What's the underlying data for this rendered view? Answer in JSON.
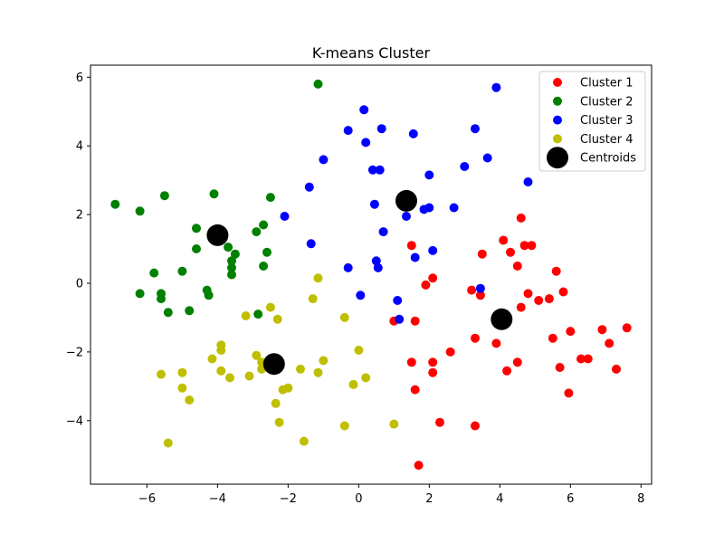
{
  "chart_data": {
    "type": "scatter",
    "title": "K-means Cluster",
    "xlabel": "",
    "ylabel": "",
    "xlim": [
      -7.6,
      8.3
    ],
    "ylim": [
      -5.85,
      6.35
    ],
    "xticks": [
      -6,
      -4,
      -2,
      0,
      2,
      4,
      6,
      8
    ],
    "yticks": [
      -4,
      -2,
      0,
      2,
      4,
      6
    ],
    "xtick_labels": [
      "−6",
      "−4",
      "−2",
      "0",
      "2",
      "4",
      "6",
      "8"
    ],
    "ytick_labels": [
      "−4",
      "−2",
      "0",
      "2",
      "4",
      "6"
    ],
    "grid": false,
    "legend_position": "top-right",
    "series": [
      {
        "name": "Cluster 1",
        "color": "#ff0000",
        "points": [
          [
            1.5,
            1.1
          ],
          [
            1.6,
            -1.1
          ],
          [
            1.5,
            -2.3
          ],
          [
            1.6,
            -3.1
          ],
          [
            1.7,
            -5.3
          ],
          [
            1.0,
            -1.1
          ],
          [
            1.9,
            -0.05
          ],
          [
            2.1,
            0.15
          ],
          [
            2.1,
            -2.3
          ],
          [
            2.1,
            -2.6
          ],
          [
            2.3,
            -4.05
          ],
          [
            2.6,
            -2.0
          ],
          [
            3.2,
            -0.2
          ],
          [
            3.3,
            -1.6
          ],
          [
            3.3,
            -4.15
          ],
          [
            3.45,
            -0.35
          ],
          [
            3.5,
            0.85
          ],
          [
            3.9,
            -1.75
          ],
          [
            4.1,
            1.25
          ],
          [
            4.2,
            -2.55
          ],
          [
            4.3,
            0.9
          ],
          [
            4.5,
            0.5
          ],
          [
            4.5,
            -2.3
          ],
          [
            4.6,
            1.9
          ],
          [
            4.6,
            -0.7
          ],
          [
            4.7,
            1.1
          ],
          [
            4.8,
            -0.3
          ],
          [
            4.9,
            1.1
          ],
          [
            5.1,
            -0.5
          ],
          [
            5.4,
            -0.45
          ],
          [
            5.5,
            -1.6
          ],
          [
            5.6,
            0.35
          ],
          [
            5.7,
            -2.45
          ],
          [
            5.8,
            -0.25
          ],
          [
            5.95,
            -3.2
          ],
          [
            6.0,
            -1.4
          ],
          [
            6.3,
            -2.2
          ],
          [
            6.5,
            -2.2
          ],
          [
            6.9,
            -1.35
          ],
          [
            7.1,
            -1.75
          ],
          [
            7.3,
            -2.5
          ],
          [
            7.6,
            -1.3
          ]
        ]
      },
      {
        "name": "Cluster 2",
        "color": "#008000",
        "points": [
          [
            -6.9,
            2.3
          ],
          [
            -6.2,
            2.1
          ],
          [
            -6.2,
            -0.3
          ],
          [
            -5.8,
            0.3
          ],
          [
            -5.6,
            -0.3
          ],
          [
            -5.6,
            -0.45
          ],
          [
            -5.5,
            2.55
          ],
          [
            -5.4,
            -0.85
          ],
          [
            -5.0,
            0.35
          ],
          [
            -4.8,
            -0.8
          ],
          [
            -4.6,
            1.6
          ],
          [
            -4.6,
            1.0
          ],
          [
            -4.3,
            -0.2
          ],
          [
            -4.25,
            -0.35
          ],
          [
            -4.1,
            2.6
          ],
          [
            -3.7,
            1.05
          ],
          [
            -3.6,
            0.65
          ],
          [
            -3.6,
            0.45
          ],
          [
            -3.6,
            0.25
          ],
          [
            -3.5,
            0.85
          ],
          [
            -2.9,
            1.5
          ],
          [
            -2.85,
            -0.9
          ],
          [
            -2.7,
            1.7
          ],
          [
            -2.7,
            0.5
          ],
          [
            -2.6,
            0.9
          ],
          [
            -2.5,
            2.5
          ],
          [
            -1.15,
            5.8
          ]
        ]
      },
      {
        "name": "Cluster 3",
        "color": "#0000ff",
        "points": [
          [
            -2.1,
            1.95
          ],
          [
            -1.4,
            2.8
          ],
          [
            -1.35,
            1.15
          ],
          [
            -1.0,
            3.6
          ],
          [
            -0.3,
            4.45
          ],
          [
            -0.3,
            0.45
          ],
          [
            0.05,
            -0.35
          ],
          [
            0.15,
            5.05
          ],
          [
            0.2,
            4.1
          ],
          [
            0.4,
            3.3
          ],
          [
            0.45,
            2.3
          ],
          [
            0.5,
            0.65
          ],
          [
            0.55,
            0.45
          ],
          [
            0.6,
            3.3
          ],
          [
            0.65,
            4.5
          ],
          [
            0.7,
            1.5
          ],
          [
            1.1,
            -0.5
          ],
          [
            1.15,
            -1.05
          ],
          [
            1.35,
            1.95
          ],
          [
            1.55,
            4.35
          ],
          [
            1.6,
            0.75
          ],
          [
            1.85,
            2.15
          ],
          [
            2.0,
            2.2
          ],
          [
            2.0,
            3.15
          ],
          [
            2.1,
            0.95
          ],
          [
            2.7,
            2.2
          ],
          [
            3.0,
            3.4
          ],
          [
            3.3,
            4.5
          ],
          [
            3.45,
            -0.15
          ],
          [
            3.65,
            3.65
          ],
          [
            3.9,
            5.7
          ],
          [
            4.8,
            2.95
          ]
        ]
      },
      {
        "name": "Cluster 4",
        "color": "#bfbf00",
        "points": [
          [
            -5.6,
            -2.65
          ],
          [
            -5.4,
            -4.65
          ],
          [
            -5.0,
            -2.6
          ],
          [
            -5.0,
            -3.05
          ],
          [
            -4.8,
            -3.4
          ],
          [
            -4.15,
            -2.2
          ],
          [
            -3.9,
            -1.8
          ],
          [
            -3.9,
            -1.95
          ],
          [
            -3.9,
            -2.55
          ],
          [
            -3.65,
            -2.75
          ],
          [
            -3.2,
            -0.95
          ],
          [
            -3.1,
            -2.7
          ],
          [
            -2.9,
            -2.1
          ],
          [
            -2.75,
            -2.3
          ],
          [
            -2.75,
            -2.5
          ],
          [
            -2.5,
            -0.7
          ],
          [
            -2.35,
            -3.5
          ],
          [
            -2.3,
            -1.05
          ],
          [
            -2.25,
            -4.05
          ],
          [
            -2.15,
            -3.1
          ],
          [
            -2.0,
            -3.05
          ],
          [
            -1.65,
            -2.5
          ],
          [
            -1.55,
            -4.6
          ],
          [
            -1.3,
            -0.45
          ],
          [
            -1.15,
            0.15
          ],
          [
            -1.15,
            -2.6
          ],
          [
            -1.0,
            -2.25
          ],
          [
            -0.4,
            -1.0
          ],
          [
            -0.4,
            -4.15
          ],
          [
            -0.15,
            -2.95
          ],
          [
            0.0,
            -1.95
          ],
          [
            0.2,
            -2.75
          ],
          [
            1.0,
            -4.1
          ]
        ]
      }
    ],
    "centroids": {
      "name": "Centroids",
      "color": "#000000",
      "points": [
        [
          -4.0,
          1.4
        ],
        [
          1.35,
          2.4
        ],
        [
          4.05,
          -1.05
        ],
        [
          -2.4,
          -2.35
        ]
      ]
    }
  }
}
